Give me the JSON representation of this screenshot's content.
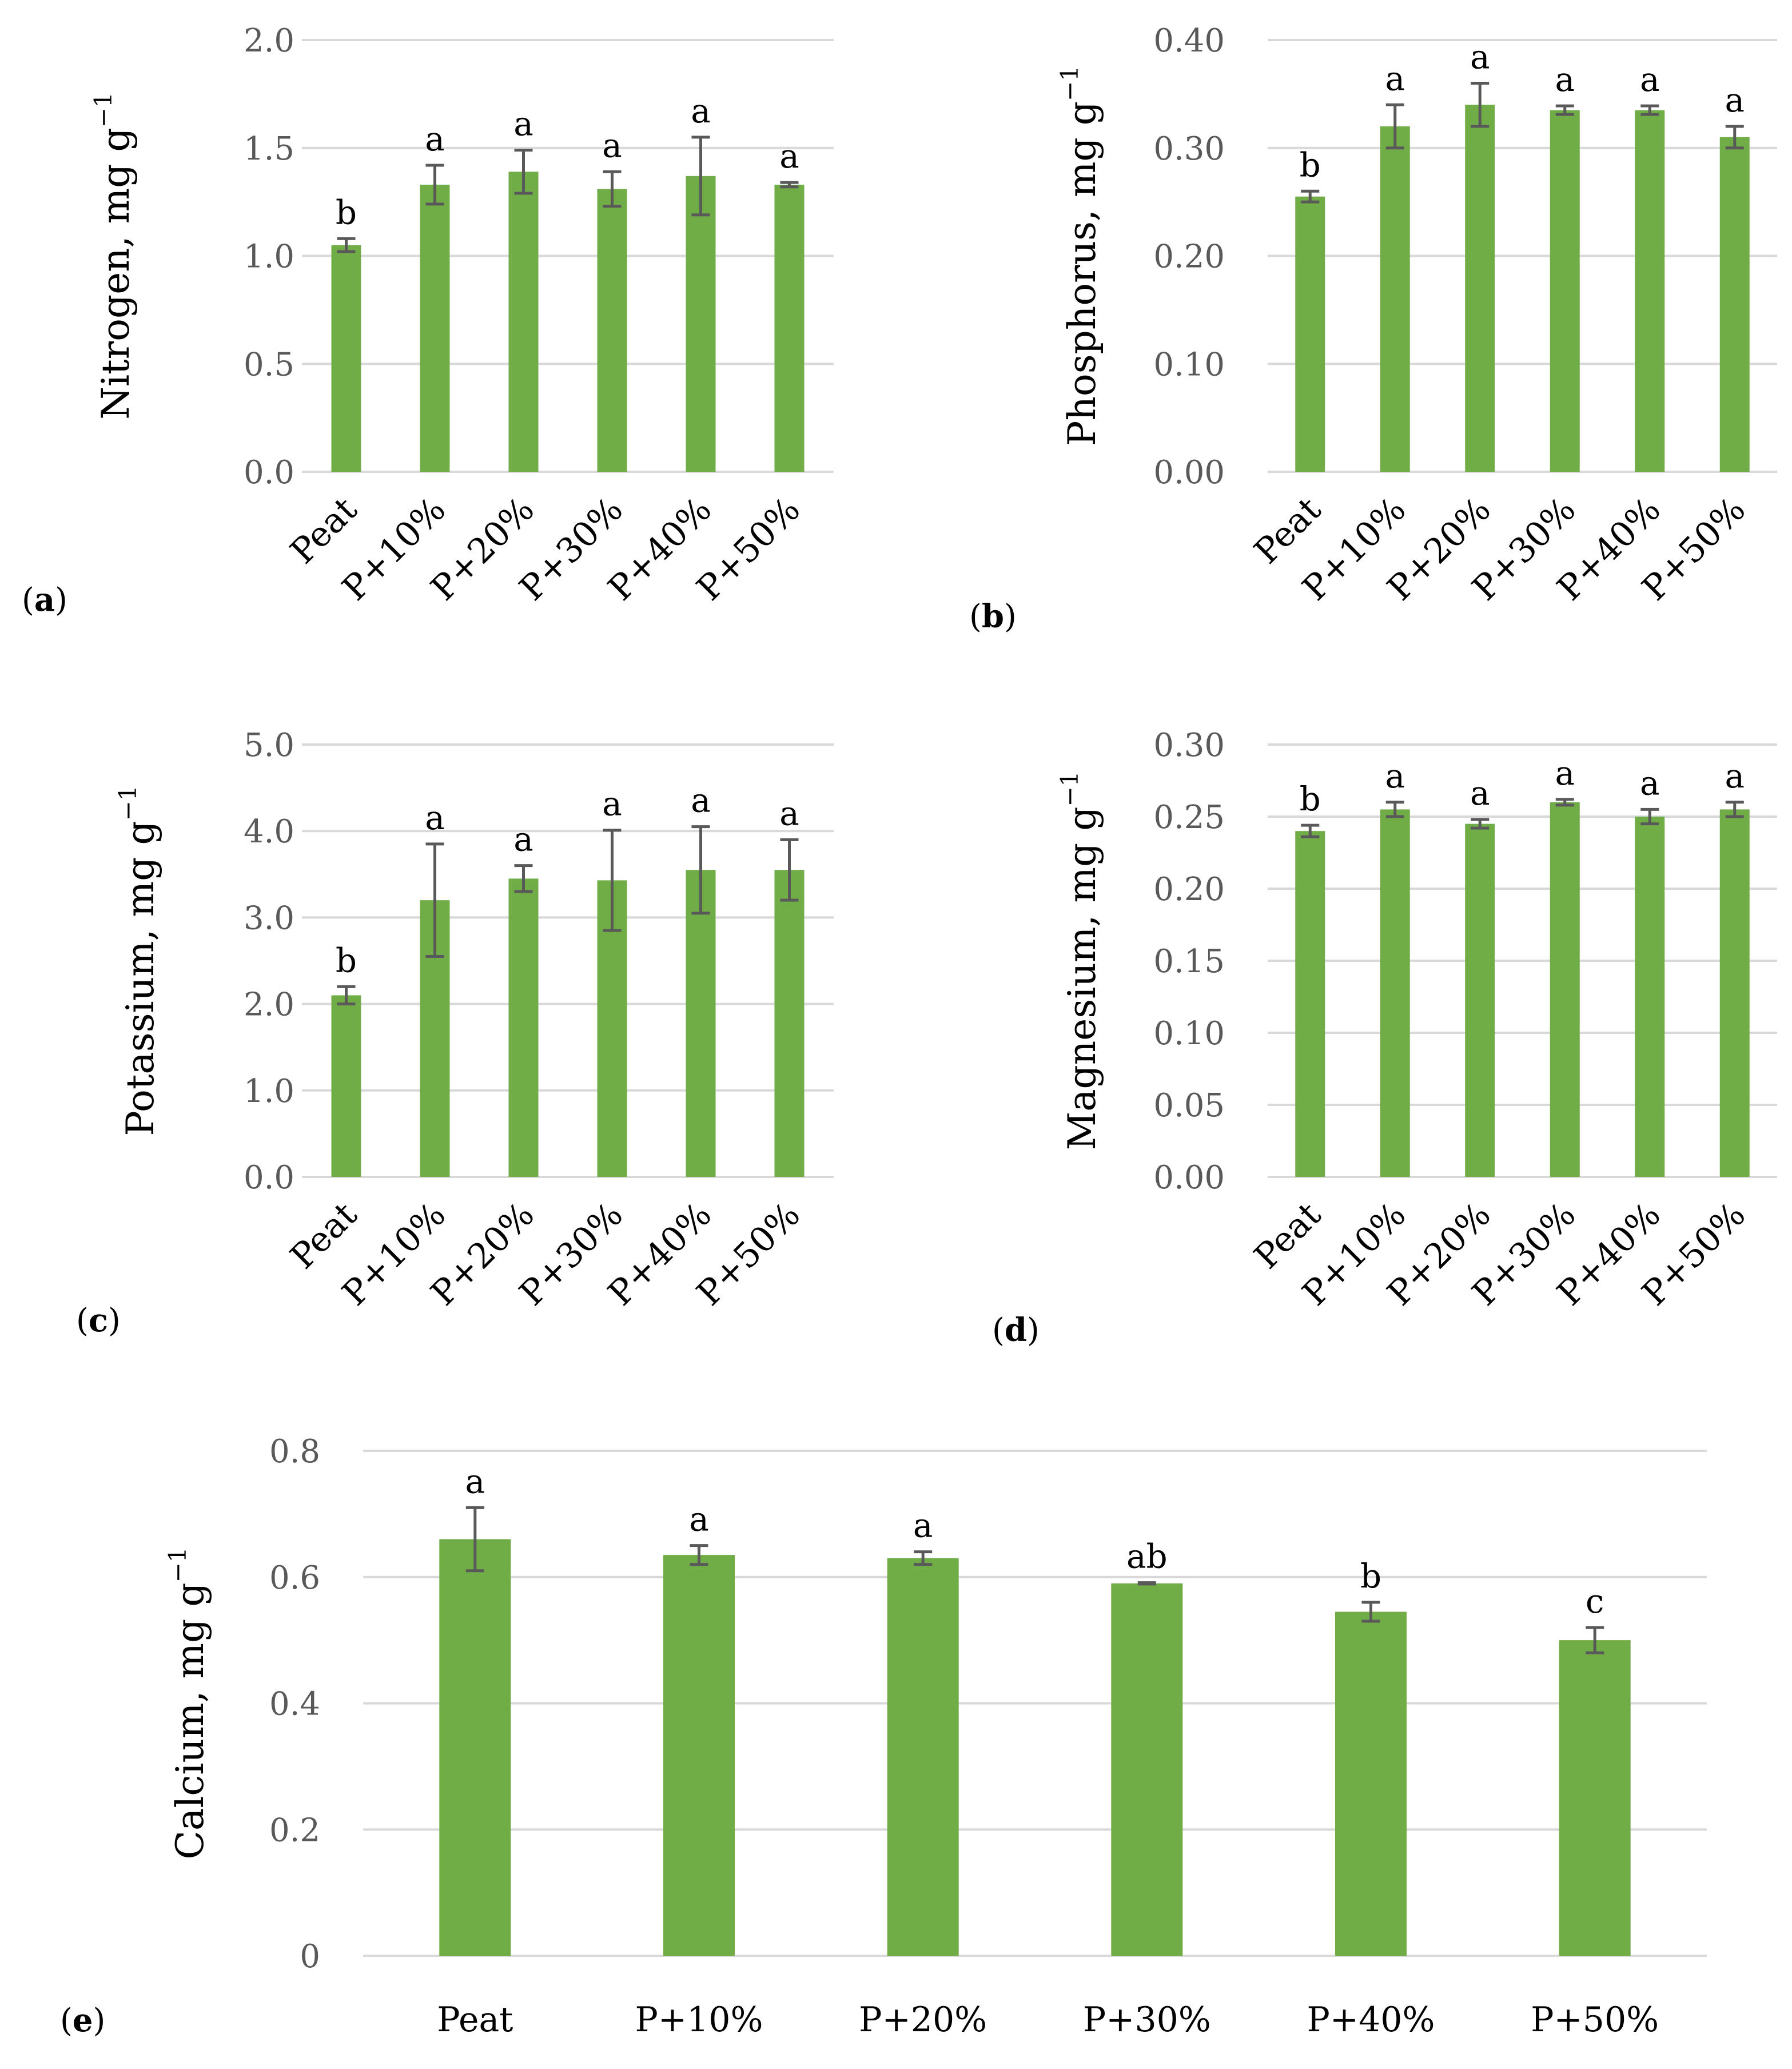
{
  "chart_data": [
    {
      "id": "a",
      "type": "bar",
      "panel_label": "a",
      "ylabel": "Nitrogen, mg g",
      "ylabel_sup": "−1",
      "categories": [
        "Peat",
        "P+10%",
        "P+20%",
        "P+30%",
        "P+40%",
        "P+50%"
      ],
      "values": [
        1.05,
        1.33,
        1.39,
        1.31,
        1.37,
        1.33
      ],
      "errors": [
        0.03,
        0.09,
        0.1,
        0.08,
        0.18,
        0.01
      ],
      "letters": [
        "b",
        "a",
        "a",
        "a",
        "a",
        "a"
      ],
      "ylim": [
        0,
        2.0
      ],
      "yticks": [
        "0.0",
        "0.5",
        "1.0",
        "1.5",
        "2.0"
      ],
      "grid": true,
      "rotate_labels": true
    },
    {
      "id": "b",
      "type": "bar",
      "panel_label": "b",
      "ylabel": "Phosphorus, mg g",
      "ylabel_sup": "−1",
      "categories": [
        "Peat",
        "P+10%",
        "P+20%",
        "P+30%",
        "P+40%",
        "P+50%"
      ],
      "values": [
        0.255,
        0.32,
        0.34,
        0.335,
        0.335,
        0.31
      ],
      "errors": [
        0.005,
        0.02,
        0.02,
        0.004,
        0.004,
        0.01
      ],
      "letters": [
        "b",
        "a",
        "a",
        "a",
        "a",
        "a"
      ],
      "ylim": [
        0,
        0.4
      ],
      "yticks": [
        "0.00",
        "0.10",
        "0.20",
        "0.30",
        "0.40"
      ],
      "grid": true,
      "rotate_labels": true
    },
    {
      "id": "c",
      "type": "bar",
      "panel_label": "c",
      "ylabel": "Potassium, mg g",
      "ylabel_sup": "−1",
      "categories": [
        "Peat",
        "P+10%",
        "P+20%",
        "P+30%",
        "P+40%",
        "P+50%"
      ],
      "values": [
        2.1,
        3.2,
        3.45,
        3.43,
        3.55,
        3.55
      ],
      "errors": [
        0.1,
        0.65,
        0.15,
        0.58,
        0.5,
        0.35
      ],
      "letters": [
        "b",
        "a",
        "a",
        "a",
        "a",
        "a"
      ],
      "ylim": [
        0,
        5.0
      ],
      "yticks": [
        "0.0",
        "1.0",
        "2.0",
        "3.0",
        "4.0",
        "5.0"
      ],
      "grid": true,
      "rotate_labels": true
    },
    {
      "id": "d",
      "type": "bar",
      "panel_label": "d",
      "ylabel": "Magnesium, mg g",
      "ylabel_sup": "−1",
      "categories": [
        "Peat",
        "P+10%",
        "P+20%",
        "P+30%",
        "P+40%",
        "P+50%"
      ],
      "values": [
        0.24,
        0.255,
        0.245,
        0.26,
        0.25,
        0.255
      ],
      "errors": [
        0.004,
        0.005,
        0.003,
        0.002,
        0.005,
        0.005
      ],
      "letters": [
        "b",
        "a",
        "a",
        "a",
        "a",
        "a"
      ],
      "ylim": [
        0,
        0.3
      ],
      "yticks": [
        "0.00",
        "0.05",
        "0.10",
        "0.15",
        "0.20",
        "0.25",
        "0.30"
      ],
      "grid": true,
      "rotate_labels": true
    },
    {
      "id": "e",
      "type": "bar",
      "panel_label": "e",
      "ylabel": "Calcium, mg g",
      "ylabel_sup": "−1",
      "categories": [
        "Peat",
        "P+10%",
        "P+20%",
        "P+30%",
        "P+40%",
        "P+50%"
      ],
      "values": [
        0.66,
        0.635,
        0.63,
        0.59,
        0.545,
        0.5
      ],
      "errors": [
        0.05,
        0.015,
        0.01,
        0.001,
        0.015,
        0.02
      ],
      "letters": [
        "a",
        "a",
        "a",
        "ab",
        "b",
        "c"
      ],
      "ylim": [
        0,
        0.8
      ],
      "yticks": [
        "0",
        "0.2",
        "0.4",
        "0.6",
        "0.8"
      ],
      "grid": true,
      "rotate_labels": false
    }
  ],
  "colors": {
    "bar": "#70ad47",
    "error_bar": "#595959",
    "grid": "#d9d9d9",
    "tick_text": "#595959"
  }
}
